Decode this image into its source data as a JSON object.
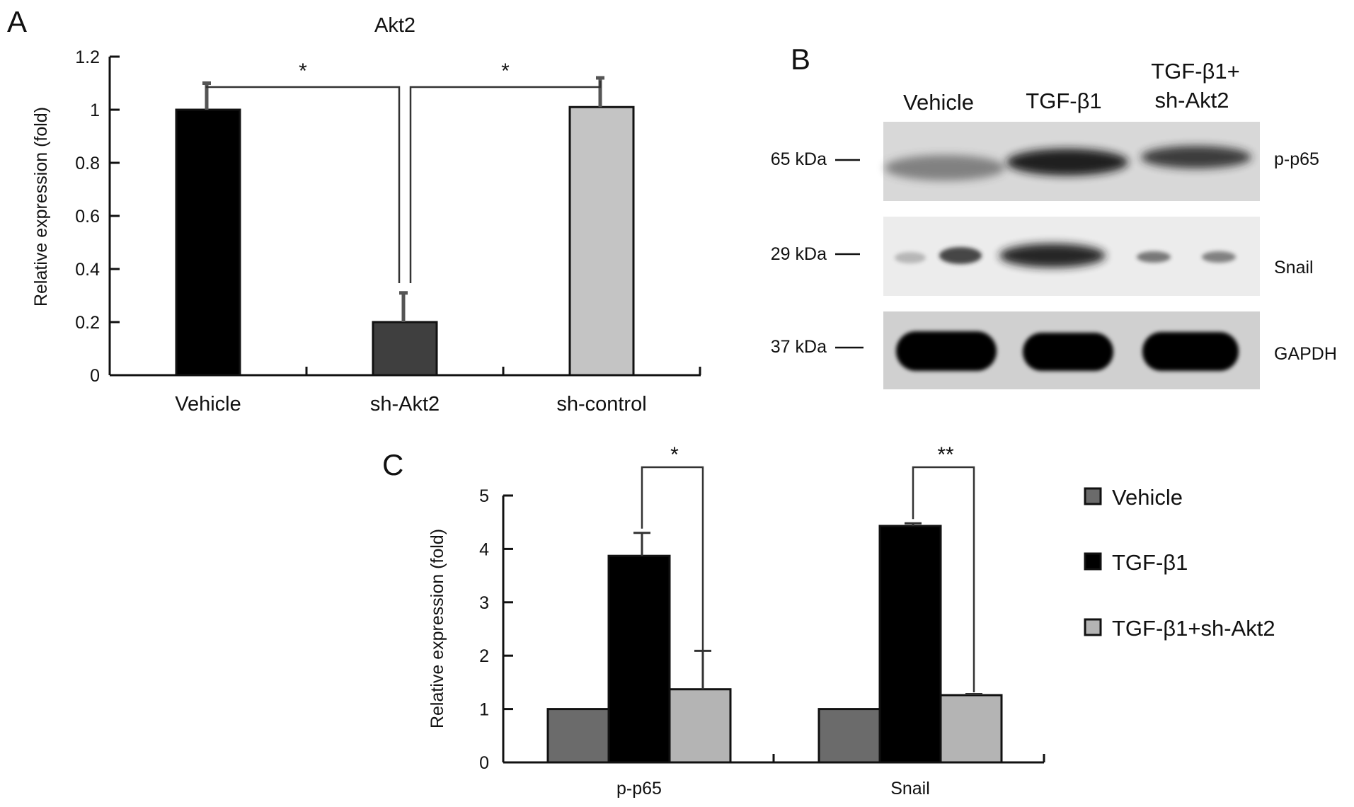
{
  "panels": {
    "a": "A",
    "b": "B",
    "c": "C"
  },
  "chart_data": [
    {
      "type": "bar",
      "title": "Akt2",
      "ylabel": "Relative expression (fold)",
      "ylim": [
        0,
        1.2
      ],
      "yticks": [
        0,
        0.2,
        0.4,
        0.6,
        0.8,
        1,
        1.2
      ],
      "ytick_labels": [
        "0",
        "0.2",
        "0.4",
        "0.6",
        "0.8",
        "1",
        "1.2"
      ],
      "categories": [
        "Vehicle",
        "sh-Akt2",
        "sh-control"
      ],
      "values": [
        1.0,
        0.2,
        1.01
      ],
      "errors": [
        0.1,
        0.11,
        0.11
      ],
      "colors": [
        "#000000",
        "#3f3f3f",
        "#c4c4c4"
      ],
      "significance": [
        {
          "from": 0,
          "to": 1,
          "label": "*"
        },
        {
          "from": 1,
          "to": 2,
          "label": "*"
        }
      ]
    },
    {
      "type": "bar",
      "ylabel": "Relative expression (fold)",
      "ylim": [
        0,
        5
      ],
      "yticks": [
        0,
        1,
        2,
        3,
        4,
        5
      ],
      "ytick_labels": [
        "0",
        "1",
        "2",
        "3",
        "4",
        "5"
      ],
      "categories": [
        "p-p65",
        "Snail"
      ],
      "series": [
        {
          "name": "Vehicle",
          "values": [
            1.0,
            1.0
          ],
          "errors": [
            0,
            0
          ],
          "color": "#6b6b6b"
        },
        {
          "name": "TGF-β1",
          "values": [
            3.87,
            4.43
          ],
          "errors": [
            0.43,
            0.05
          ],
          "color": "#000000"
        },
        {
          "name": "TGF-β1+sh-Akt2",
          "values": [
            1.37,
            1.26
          ],
          "errors": [
            0.72,
            0.02
          ],
          "color": "#b4b4b4"
        }
      ],
      "significance": [
        {
          "category": 0,
          "from": 1,
          "to": 2,
          "label": "*"
        },
        {
          "category": 1,
          "from": 1,
          "to": 2,
          "label": "**"
        }
      ],
      "legend": "right"
    }
  ],
  "blot": {
    "lanes": [
      "Vehicle",
      "TGF-β1",
      "TGF-β1+",
      "sh-Akt2"
    ],
    "rows": [
      {
        "marker": "65 kDa",
        "protein": "p-p65"
      },
      {
        "marker": "29 kDa",
        "protein": "Snail"
      },
      {
        "marker": "37 kDa",
        "protein": "GAPDH"
      }
    ]
  }
}
